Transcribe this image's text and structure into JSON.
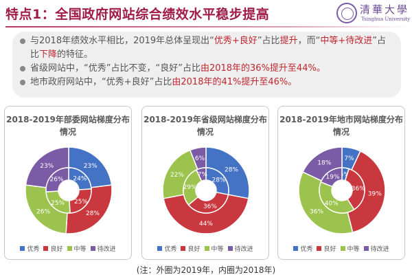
{
  "header": {
    "title": "特点1：全国政府网站综合绩效水平稳步提高",
    "logo_cn": "清華大學",
    "logo_en": "Tsinghua University"
  },
  "bullets": [
    [
      {
        "text": "与2018年绩效水平相比，2019年总体呈现出“",
        "hl": false
      },
      {
        "text": "优秀+良好",
        "hl": true
      },
      {
        "text": "”占比",
        "hl": false
      },
      {
        "text": "提升",
        "hl": true
      },
      {
        "text": "，而“",
        "hl": false
      },
      {
        "text": "中等+待改进",
        "hl": true
      },
      {
        "text": "”占比",
        "hl": false
      },
      {
        "text": "下降",
        "hl": true
      },
      {
        "text": "的特征。",
        "hl": false
      }
    ],
    [
      {
        "text": "省级网站中，“优秀”占比不变，“良好”占比",
        "hl": false
      },
      {
        "text": "由2018年的36%提升至44%。",
        "hl": true
      }
    ],
    [
      {
        "text": "地市政府网站中，“优秀+良好”占比",
        "hl": false
      },
      {
        "text": "由2018年的41%提升至46%。",
        "hl": true
      }
    ]
  ],
  "colors": {
    "title": "#a01c47",
    "highlight": "#c0262f",
    "series": [
      "#4472c4",
      "#c8383e",
      "#9cc34d",
      "#7b5aa6"
    ]
  },
  "chart_data": [
    {
      "type": "pie",
      "title": "2018-2019年部委网站梯度分布情况",
      "categories": [
        "优秀",
        "良好",
        "中等",
        "待改进"
      ],
      "series": [
        {
          "name": "2019年",
          "ring": "outer",
          "values": [
            23,
            28,
            26,
            23
          ]
        },
        {
          "name": "2018年",
          "ring": "inner",
          "values": [
            24,
            25,
            25,
            26
          ]
        }
      ],
      "legend": "bottom"
    },
    {
      "type": "pie",
      "title": "2018-2019年省级网站梯度分布情况",
      "categories": [
        "优秀",
        "良好",
        "中等",
        "待改进"
      ],
      "series": [
        {
          "name": "2019年",
          "ring": "outer",
          "values": [
            28,
            44,
            22,
            6
          ]
        },
        {
          "name": "2018年",
          "ring": "inner",
          "values": [
            28,
            36,
            29,
            7
          ]
        }
      ],
      "legend": "bottom"
    },
    {
      "type": "pie",
      "title": "2018-2019年地市网站梯度分布情况",
      "categories": [
        "优秀",
        "良好",
        "中等",
        "待改进"
      ],
      "series": [
        {
          "name": "2019年",
          "ring": "outer",
          "values": [
            7,
            39,
            36,
            18
          ]
        },
        {
          "name": "2018年",
          "ring": "inner",
          "values": [
            5,
            36,
            40,
            19
          ]
        }
      ],
      "legend": "bottom"
    }
  ],
  "footnote": "(注：外圈为2019年，内圈为2018年)"
}
